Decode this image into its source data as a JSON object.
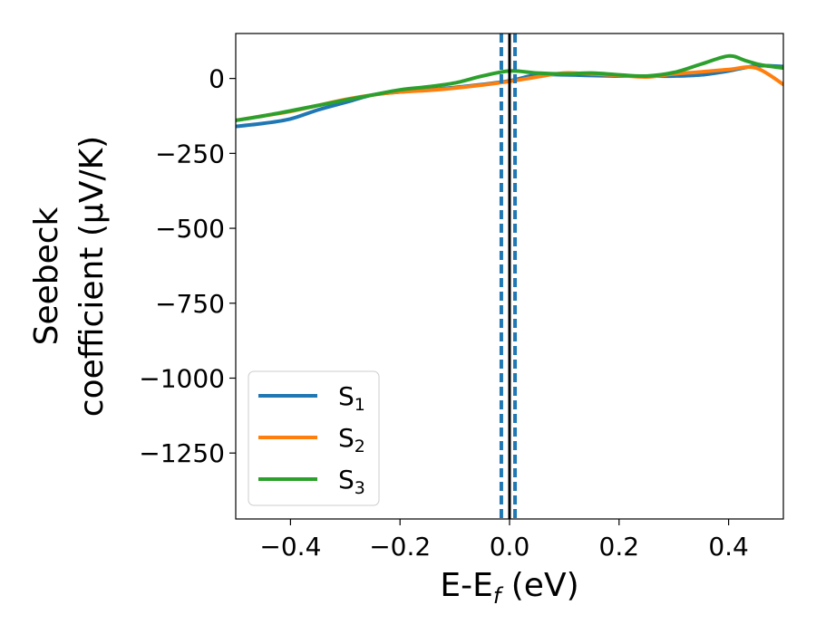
{
  "chart_data": {
    "type": "line",
    "xlabel": "E-E",
    "xlabel_sub": "f",
    "xlabel_unit": " (eV)",
    "ylabel_line1": "Seebeck",
    "ylabel_line2": "coefficient  (μV/K)",
    "xlim": [
      -0.5,
      0.5
    ],
    "ylim": [
      -1470,
      150
    ],
    "xticks": [
      -0.4,
      -0.2,
      0.0,
      0.2,
      0.4
    ],
    "xtick_labels": [
      "−0.4",
      "−0.2",
      "0.0",
      "0.2",
      "0.4"
    ],
    "yticks": [
      0,
      -250,
      -500,
      -750,
      -1000,
      -1250
    ],
    "ytick_labels": [
      "0",
      "−250",
      "−500",
      "−750",
      "−1000",
      "−1250"
    ],
    "legend_position": "lower-left",
    "grid": false,
    "vertical_lines": [
      {
        "x": -0.015,
        "style": "dashed",
        "color": "#1f77b4"
      },
      {
        "x": 0.0,
        "style": "solid",
        "color": "#000000"
      },
      {
        "x": 0.01,
        "style": "dashed",
        "color": "#1f77b4"
      }
    ],
    "series": [
      {
        "name": "S",
        "sub": "1",
        "color": "#1f77b4",
        "x": [
          -0.5,
          -0.45,
          -0.4,
          -0.35,
          -0.3,
          -0.25,
          -0.2,
          -0.15,
          -0.1,
          -0.05,
          0.0,
          0.05,
          0.1,
          0.15,
          0.2,
          0.25,
          0.3,
          0.35,
          0.4,
          0.45,
          0.5
        ],
        "y": [
          -160,
          -150,
          -135,
          -105,
          -80,
          -55,
          -45,
          -38,
          -30,
          -20,
          -8,
          12,
          12,
          10,
          8,
          8,
          8,
          12,
          25,
          42,
          40
        ]
      },
      {
        "name": "S",
        "sub": "2",
        "color": "#ff7f0e",
        "x": [
          -0.5,
          -0.45,
          -0.4,
          -0.35,
          -0.3,
          -0.25,
          -0.2,
          -0.15,
          -0.1,
          -0.05,
          0.0,
          0.05,
          0.1,
          0.15,
          0.2,
          0.25,
          0.3,
          0.35,
          0.4,
          0.45,
          0.5
        ],
        "y": [
          -140,
          -125,
          -110,
          -90,
          -70,
          -55,
          -45,
          -40,
          -32,
          -22,
          -10,
          5,
          18,
          15,
          10,
          5,
          15,
          22,
          30,
          35,
          -20
        ]
      },
      {
        "name": "S",
        "sub": "3",
        "color": "#2ca02c",
        "x": [
          -0.5,
          -0.45,
          -0.4,
          -0.35,
          -0.3,
          -0.25,
          -0.2,
          -0.15,
          -0.1,
          -0.05,
          0.0,
          0.05,
          0.1,
          0.15,
          0.2,
          0.25,
          0.3,
          0.35,
          0.4,
          0.43,
          0.46,
          0.5
        ],
        "y": [
          -140,
          -125,
          -108,
          -90,
          -72,
          -55,
          -38,
          -28,
          -15,
          8,
          25,
          18,
          15,
          18,
          12,
          8,
          20,
          48,
          75,
          60,
          45,
          35
        ]
      }
    ]
  }
}
